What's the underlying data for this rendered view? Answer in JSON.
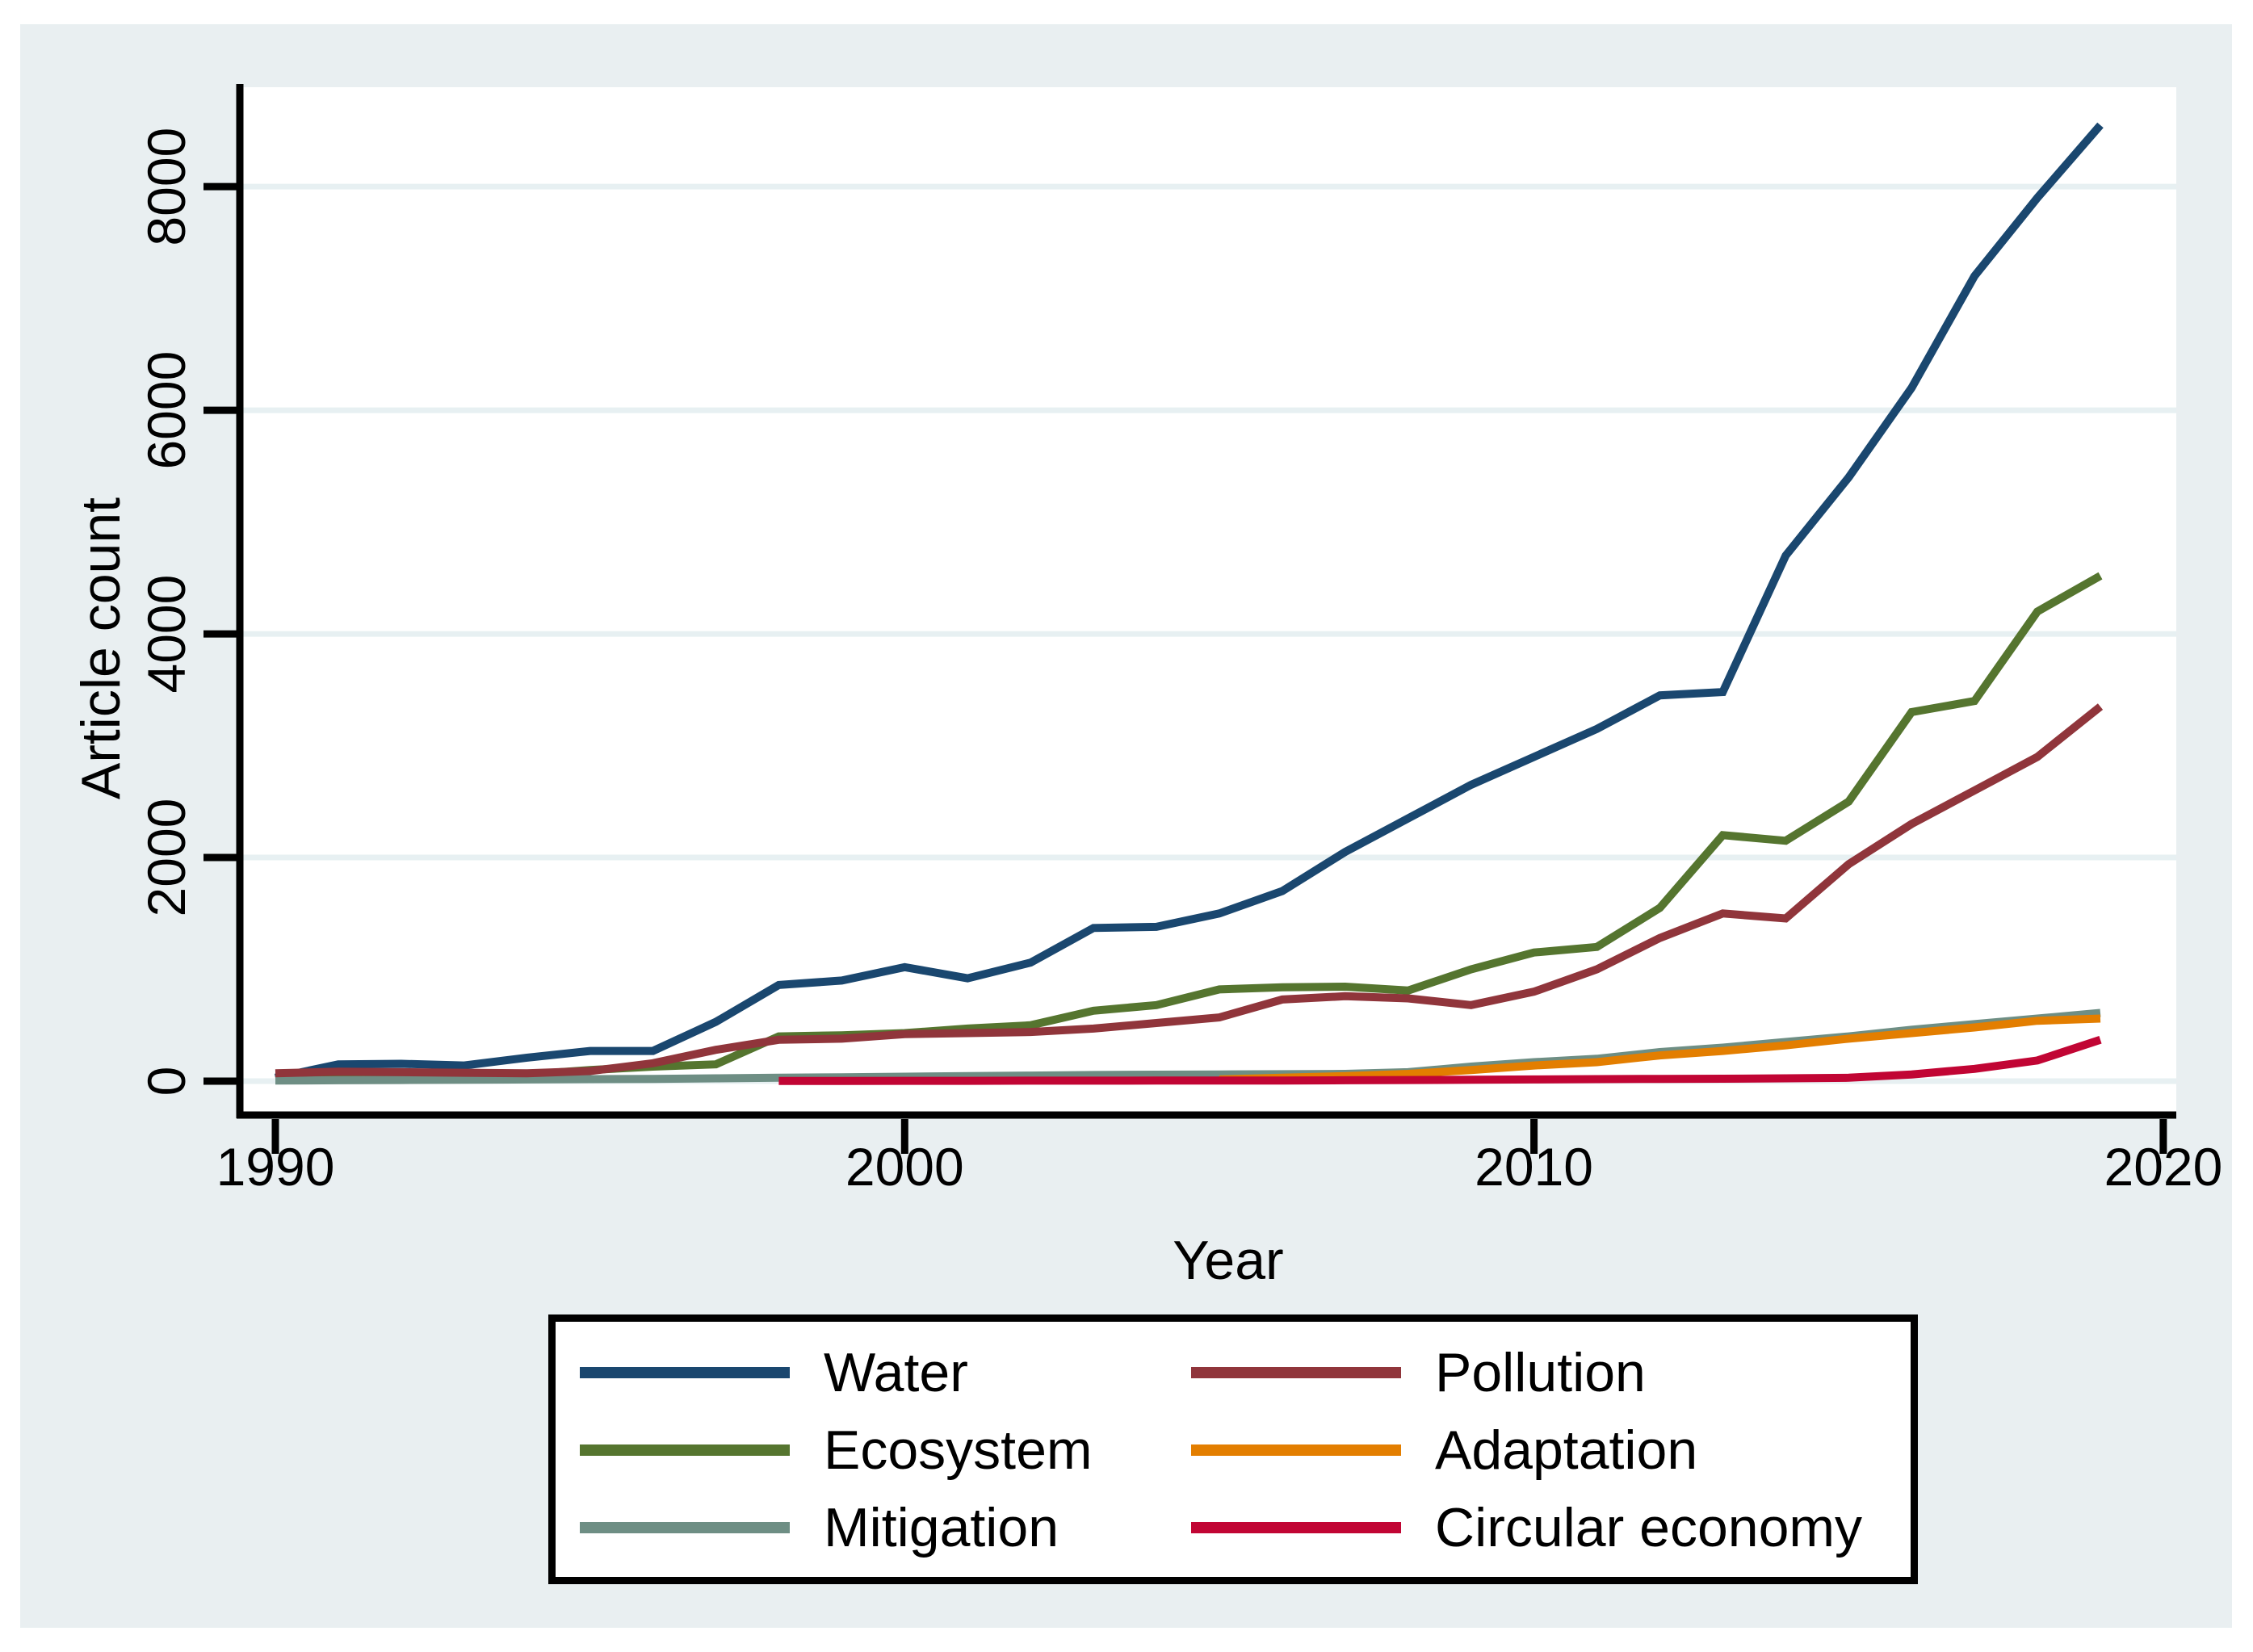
{
  "figure": {
    "outer_background": "#ffffff",
    "canvas_background": "#e9eff1",
    "plot_background": "#ffffff",
    "grid_color": "#e7f0f2",
    "axis_color": "#000000",
    "text_color": "#000000"
  },
  "chart_data": {
    "type": "line",
    "title": "",
    "xlabel": "Year",
    "ylabel": "Article count",
    "x_ticks": [
      1990,
      2000,
      2010,
      2020
    ],
    "y_ticks": [
      0,
      2000,
      4000,
      6000,
      8000
    ],
    "xlim": [
      1989.4,
      2020.2
    ],
    "ylim": [
      0,
      8880
    ],
    "grid": "horizontal",
    "legend_position": "bottom-box",
    "series": [
      {
        "name": "Water",
        "color": "#1a476f",
        "start_year": 1990,
        "values": [
          30,
          150,
          155,
          140,
          210,
          270,
          270,
          530,
          860,
          900,
          1020,
          920,
          1060,
          1370,
          1380,
          1500,
          1700,
          2050,
          2350,
          2650,
          2900,
          3150,
          3450,
          3480,
          4700,
          5400,
          6200,
          7200,
          7900,
          8550
        ]
      },
      {
        "name": "Ecosystem",
        "color": "#55752f",
        "start_year": 1990,
        "values": [
          10,
          20,
          25,
          30,
          60,
          100,
          130,
          150,
          400,
          410,
          430,
          470,
          500,
          630,
          680,
          820,
          840,
          845,
          810,
          1000,
          1150,
          1200,
          1550,
          2200,
          2150,
          2500,
          3300,
          3400,
          4200,
          4520
        ]
      },
      {
        "name": "Mitigation",
        "color": "#6e8e84",
        "start_year": 1990,
        "values": [
          5,
          8,
          10,
          12,
          15,
          18,
          20,
          25,
          30,
          35,
          40,
          45,
          50,
          55,
          58,
          60,
          62,
          65,
          80,
          130,
          170,
          200,
          260,
          300,
          350,
          400,
          460,
          510,
          560,
          610
        ]
      },
      {
        "name": "Pollution",
        "color": "#90353b",
        "start_year": 1990,
        "values": [
          70,
          85,
          80,
          75,
          70,
          90,
          160,
          280,
          370,
          380,
          420,
          430,
          440,
          470,
          520,
          570,
          730,
          760,
          740,
          680,
          800,
          1000,
          1280,
          1500,
          1455,
          1940,
          2300,
          2600,
          2900,
          3350
        ]
      },
      {
        "name": "Adaptation",
        "color": "#e37e00",
        "start_year": 2005,
        "values": [
          15,
          30,
          45,
          65,
          100,
          140,
          170,
          230,
          270,
          320,
          380,
          430,
          480,
          540,
          560
        ]
      },
      {
        "name": "Circular economy",
        "color": "#c10534",
        "start_year": 1998,
        "values": [
          2,
          2,
          3,
          3,
          4,
          4,
          5,
          5,
          6,
          8,
          10,
          12,
          15,
          18,
          20,
          22,
          25,
          30,
          60,
          110,
          185,
          370
        ]
      }
    ],
    "legend_order": [
      0,
      3,
      1,
      4,
      2,
      5
    ]
  }
}
